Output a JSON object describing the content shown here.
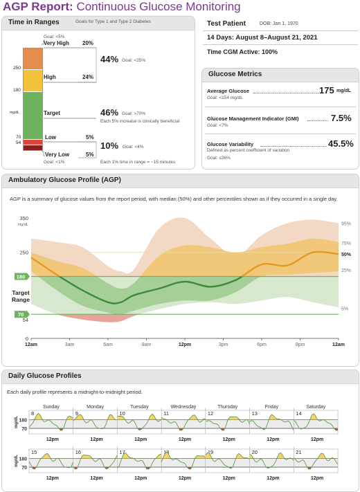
{
  "report": {
    "title_bold": "AGP Report:",
    "title_rest": "Continuous Glucose Monitoring"
  },
  "colors": {
    "very_high": "#e58b4c",
    "high": "#f2c23a",
    "target": "#6db35e",
    "low": "#d9463b",
    "very_low": "#8b1f1f",
    "accent": "#7a3a8c"
  },
  "tir": {
    "header": "Time in Ranges",
    "subheader": "Goals for Type 1 and Type 2 Diabetes",
    "very_high_goal": "Goal: <5%",
    "very_high_label": "Very High",
    "very_high_pct": "20%",
    "high_label": "High",
    "high_pct": "24%",
    "combined_high": "44%",
    "combined_high_goal": "Goal: <25%",
    "target_label": "Target",
    "target_pct": "46%",
    "target_goal": "Goal: >70%",
    "target_note": "Each 5% increase is clinically beneficial",
    "low_label": "Low",
    "low_pct": "5%",
    "very_low_label": "Very Low",
    "very_low_pct": "5%",
    "combined_low": "10%",
    "combined_low_goal": "Goal: <4%",
    "very_low_goal": "Goal: <1%",
    "low_note": "Each 1% time in range = ~15 minutes",
    "axis_250": "250",
    "axis_180": "180",
    "axis_unit": "mg/dL",
    "axis_70": "70",
    "axis_54": "54",
    "fractions": {
      "very_high": 0.2,
      "high": 0.24,
      "target": 0.46,
      "low": 0.05,
      "very_low": 0.05
    }
  },
  "patient": {
    "name": "Test Patient",
    "dob": "DOB: Jan 1, 1970",
    "period": "14 Days: August 8–August 21, 2021",
    "cgm_active": "Time CGM Active: 100%"
  },
  "metrics": {
    "header": "Glucose Metrics",
    "avg_label": "Average Glucose",
    "avg_value": "175",
    "avg_unit": "mg/dL",
    "avg_goal": "Goal: <154 mg/dL",
    "gmi_label": "Glucose Management Indicator (GMI)",
    "gmi_value": "7.5%",
    "gmi_goal": "Goal: <7%",
    "gv_label": "Glucose Variability",
    "gv_value": "45.5%",
    "gv_desc": "Defined as percent coefficient of variation",
    "gv_goal": "Goal: ≤36%"
  },
  "agp": {
    "header": "Ambulatory Glucose Profile (AGP)",
    "description": "AGP is a summary of glucose values from the report period, with median (50%) and other percentiles shown as if they occurred in a single day.",
    "y_ticks": [
      "350",
      "250",
      "180",
      "70",
      "54",
      "0"
    ],
    "y_unit": "mg/dL",
    "target_label_1": "Target",
    "target_label_2": "Range",
    "x_ticks": [
      "12am",
      "3am",
      "6am",
      "9am",
      "12pm",
      "3pm",
      "6pm",
      "9pm",
      "12am"
    ],
    "pct_labels": [
      "95%",
      "75%",
      "50%",
      "25%",
      "5%"
    ]
  },
  "chart_data": {
    "type": "area",
    "xlabel": "",
    "ylabel": "mg/dL",
    "ylim": [
      0,
      350
    ],
    "x_hours": [
      0,
      2,
      4,
      6,
      7,
      8,
      10,
      12,
      14,
      16,
      18,
      20,
      22,
      24
    ],
    "series": [
      {
        "name": "95%",
        "values": [
          290,
          280,
          265,
          210,
          195,
          200,
          320,
          360,
          290,
          240,
          300,
          335,
          345,
          335
        ]
      },
      {
        "name": "75%",
        "values": [
          250,
          225,
          205,
          160,
          145,
          160,
          240,
          270,
          265,
          250,
          265,
          275,
          290,
          280
        ]
      },
      {
        "name": "50%",
        "values": [
          235,
          185,
          140,
          105,
          105,
          125,
          145,
          165,
          150,
          170,
          215,
          212,
          250,
          245
        ]
      },
      {
        "name": "25%",
        "values": [
          195,
          140,
          95,
          75,
          70,
          80,
          100,
          110,
          110,
          135,
          180,
          185,
          190,
          195
        ]
      },
      {
        "name": "5%",
        "values": [
          100,
          70,
          55,
          47,
          50,
          65,
          85,
          100,
          105,
          100,
          110,
          120,
          105,
          90
        ]
      }
    ],
    "target_range": [
      70,
      180
    ]
  },
  "daily": {
    "header": "Daily Glucose Profiles",
    "description": "Each daily profile represents a midnight-to-midnight period.",
    "weekdays": [
      "Sunday",
      "Monday",
      "Tuesday",
      "Wednesday",
      "Thursday",
      "Friday",
      "Saturday"
    ],
    "week1_dates": [
      "8",
      "9",
      "10",
      "11",
      "12",
      "13",
      "14"
    ],
    "week2_dates": [
      "15",
      "16",
      "17",
      "18",
      "19",
      "20",
      "21"
    ],
    "noon_label": "12pm",
    "y_unit": "mg/dL",
    "y_180": "180",
    "y_70": "70"
  }
}
